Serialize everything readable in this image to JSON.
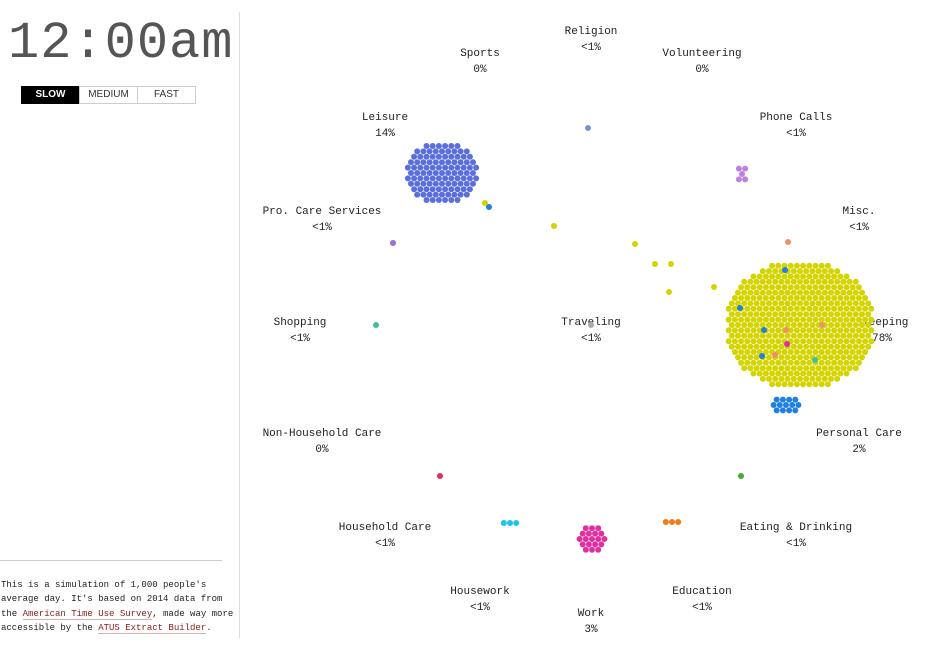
{
  "clock": "12:00am",
  "speed_buttons": [
    "SLOW",
    "MEDIUM",
    "FAST"
  ],
  "activities": [
    {
      "name": "Religion",
      "share": "<1%"
    },
    {
      "name": "Sports",
      "share": "0%"
    },
    {
      "name": "Volunteering",
      "share": "0%"
    },
    {
      "name": "Leisure",
      "share": "14%"
    },
    {
      "name": "Phone Calls",
      "share": "<1%"
    },
    {
      "name": "Pro. Care Services",
      "share": "<1%"
    },
    {
      "name": "Misc.",
      "share": "<1%"
    },
    {
      "name": "Shopping",
      "share": "<1%"
    },
    {
      "name": "Traveling",
      "share": "<1%"
    },
    {
      "name": "Sleeping",
      "share": "78%"
    },
    {
      "name": "Non-Household Care",
      "share": "0%"
    },
    {
      "name": "Personal Care",
      "share": "2%"
    },
    {
      "name": "Household Care",
      "share": "<1%"
    },
    {
      "name": "Eating & Drinking",
      "share": "<1%"
    },
    {
      "name": "Housework",
      "share": "<1%"
    },
    {
      "name": "Education",
      "share": "<1%"
    },
    {
      "name": "Work",
      "share": "3%"
    }
  ],
  "description": {
    "lines": [
      [
        "This is a simulation of 1,000 people's"
      ],
      [
        "average day. It's based on 2014 data from"
      ],
      [
        "the ",
        "American Time Use Survey",
        ", made way more"
      ],
      [
        "accessible by the ",
        "ATUS Extract Builder",
        "."
      ]
    ]
  }
}
